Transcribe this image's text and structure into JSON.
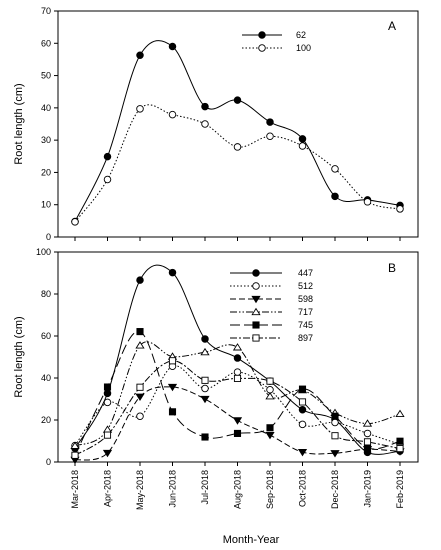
{
  "xlabel": "Month-Year",
  "categories": [
    "Mar-2018",
    "Apr-2018",
    "May-2018",
    "Jun-2018",
    "Jul-2018",
    "Aug-2018",
    "Sep-2018",
    "Oct-2018",
    "Dec-2018",
    "Jan-2019",
    "Feb-2019"
  ],
  "chart_data": [
    {
      "type": "line",
      "panel": "A",
      "ylabel": "Root length (cm)",
      "ylim": [
        0,
        70
      ],
      "yticks": [
        0,
        10,
        20,
        30,
        40,
        50,
        60,
        70
      ],
      "legend_position": "top-center",
      "series": [
        {
          "name": "62",
          "style": "solid",
          "marker": "filled-circle",
          "values": [
            4.8,
            24.9,
            56.3,
            59.0,
            40.4,
            42.4,
            35.6,
            30.4,
            12.6,
            11.5,
            9.8
          ]
        },
        {
          "name": "100",
          "style": "dotted",
          "marker": "open-circle",
          "values": [
            4.7,
            17.8,
            39.7,
            37.9,
            35.0,
            27.9,
            31.2,
            28.2,
            21.1,
            10.9,
            8.7
          ]
        }
      ]
    },
    {
      "type": "line",
      "panel": "B",
      "ylabel": "Root length (cm)",
      "ylim": [
        0,
        100
      ],
      "yticks": [
        0,
        20,
        40,
        60,
        80,
        100
      ],
      "legend_position": "top-center",
      "series": [
        {
          "name": "447",
          "style": "solid",
          "marker": "filled-circle",
          "values": [
            6.5,
            32.7,
            86.6,
            90.2,
            58.6,
            49.5,
            38.5,
            24.9,
            20.1,
            4.6,
            5.2
          ]
        },
        {
          "name": "512",
          "style": "dotted",
          "marker": "open-circle",
          "values": [
            7.8,
            28.4,
            21.8,
            45.6,
            35.0,
            42.8,
            34.4,
            17.9,
            18.8,
            13.6,
            8.4
          ]
        },
        {
          "name": "598",
          "style": "dashed",
          "marker": "filled-triangle-down",
          "values": [
            1.0,
            4.3,
            31.1,
            35.7,
            30.0,
            19.8,
            12.8,
            4.7,
            4.2,
            6.1,
            5.0
          ]
        },
        {
          "name": "717",
          "style": "dash-dot-dot",
          "marker": "open-triangle-up",
          "values": [
            7.7,
            15.4,
            55.5,
            50.2,
            52.3,
            54.6,
            31.3,
            34.2,
            23.4,
            18.3,
            22.9
          ]
        },
        {
          "name": "745",
          "style": "long-dash",
          "marker": "filled-square",
          "values": [
            3.1,
            35.7,
            62.1,
            23.9,
            11.9,
            13.6,
            16.3,
            34.7,
            21.8,
            6.7,
            9.9
          ]
        },
        {
          "name": "897",
          "style": "dash-dot",
          "marker": "open-square",
          "values": [
            3.2,
            12.8,
            35.6,
            48.2,
            38.9,
            39.8,
            38.5,
            28.6,
            12.5,
            9.6,
            6.4
          ]
        }
      ]
    }
  ],
  "colors": {
    "line": "#000000",
    "background": "#ffffff"
  }
}
